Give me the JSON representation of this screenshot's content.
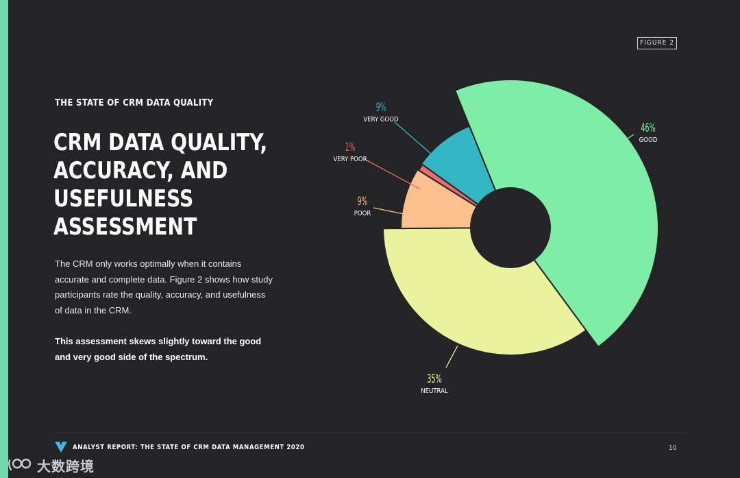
{
  "page": {
    "figure_tag": "FIGURE 2",
    "eyebrow": "THE STATE OF CRM DATA QUALITY",
    "headline_lines": [
      "CRM DATA QUALITY,",
      "ACCURACY, AND",
      "USEFULNESS",
      "ASSESSMENT"
    ],
    "body": "The CRM only works optimally when it contains accurate and complete data. Figure 2 shows how study participants rate the quality, accuracy, and usefulness of data in the CRM.",
    "emphasis": "This assessment skews slightly toward the good and very good side of the spectrum.",
    "footer_text": "ANALYST REPORT: THE STATE OF CRM DATA MANAGEMENT 2020",
    "page_number": "10",
    "watermark_text": "大数跨境"
  },
  "colors": {
    "background": "#242426",
    "accent": "#6fd9a8"
  },
  "chart_data": {
    "type": "pie",
    "style": "variable-radius donut (nightingale rose)",
    "categories": [
      "GOOD",
      "NEUTRAL",
      "POOR",
      "VERY POOR",
      "VERY GOOD"
    ],
    "values": [
      46,
      35,
      9,
      1,
      9
    ],
    "labels": [
      "46%",
      "35%",
      "9%",
      "1%",
      "9%"
    ],
    "colors": [
      "#7eeea6",
      "#ebf29e",
      "#fcc08e",
      "#ea6c6c",
      "#34b7c4"
    ],
    "title": "",
    "legend": "none"
  }
}
